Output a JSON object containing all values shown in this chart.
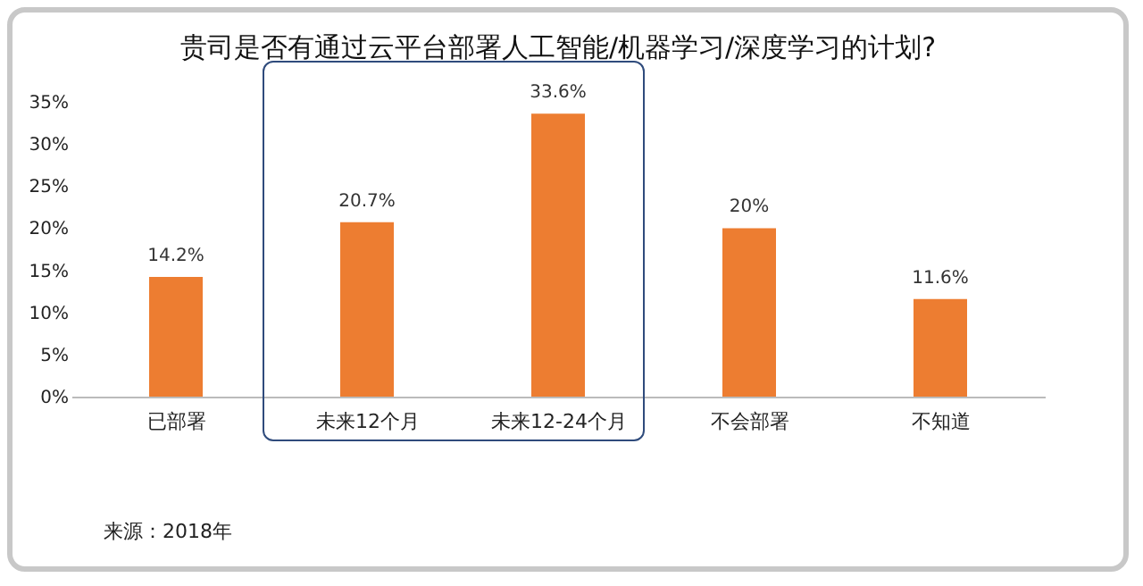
{
  "chart_data": {
    "type": "bar",
    "title": "贵司是否有通过云平台部署人工智能/机器学习/深度学习的计划?",
    "categories": [
      "已部署",
      "未来12个月",
      "未来12-24个月",
      "不会部署",
      "不知道"
    ],
    "values": [
      14.2,
      20.7,
      33.6,
      20,
      11.6
    ],
    "value_labels": [
      "14.2%",
      "20.7%",
      "33.6%",
      "20%",
      "11.6%"
    ],
    "color": "#ed7d31",
    "ylim": [
      0,
      35
    ],
    "yticks": [
      {
        "value": 0,
        "label": "0%"
      },
      {
        "value": 5,
        "label": "5%"
      },
      {
        "value": 10,
        "label": "10%"
      },
      {
        "value": 15,
        "label": "15%"
      },
      {
        "value": 20,
        "label": "20%"
      },
      {
        "value": 25,
        "label": "25%"
      },
      {
        "value": 30,
        "label": "30%"
      },
      {
        "value": 35,
        "label": "35%"
      }
    ],
    "grid": false,
    "annotations": [
      "来源：2018年"
    ]
  }
}
